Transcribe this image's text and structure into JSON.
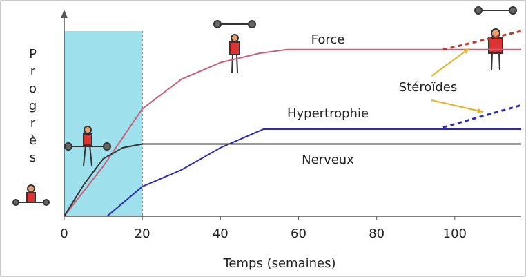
{
  "chart_data": {
    "type": "line",
    "y_label": "Progrès",
    "x_label": "Temps (semaines)",
    "xlim": [
      0,
      117
    ],
    "ylim": [
      0,
      100
    ],
    "xticks": [
      0,
      20,
      40,
      60,
      80,
      100
    ],
    "shaded_xrange": [
      0,
      20
    ],
    "shade_color": "#9ee0ec",
    "series": [
      {
        "name": "Force",
        "color": "#c8607a",
        "x": [
          0,
          10,
          20,
          30,
          40,
          50,
          57,
          117
        ],
        "values": [
          0,
          27,
          58,
          74,
          83,
          88,
          90,
          90
        ]
      },
      {
        "name": "Hypertrophie",
        "color": "#2b2bb8",
        "x": [
          11,
          20,
          30,
          40,
          51,
          117
        ],
        "values": [
          0,
          16,
          25,
          37,
          47,
          47
        ]
      },
      {
        "name": "Nerveux",
        "color": "#333333",
        "x": [
          0,
          5,
          10,
          15,
          20,
          117
        ],
        "values": [
          0,
          17,
          31,
          37,
          39,
          39
        ]
      }
    ],
    "annotation": {
      "text": "Stéroïdes",
      "color": "#e8b020",
      "lines": [
        {
          "color": "#c0392b",
          "x": [
            97,
            117
          ],
          "values": [
            90,
            100
          ]
        },
        {
          "color": "#2b2bb8",
          "x": [
            97,
            117
          ],
          "values": [
            48,
            60
          ]
        }
      ]
    }
  }
}
